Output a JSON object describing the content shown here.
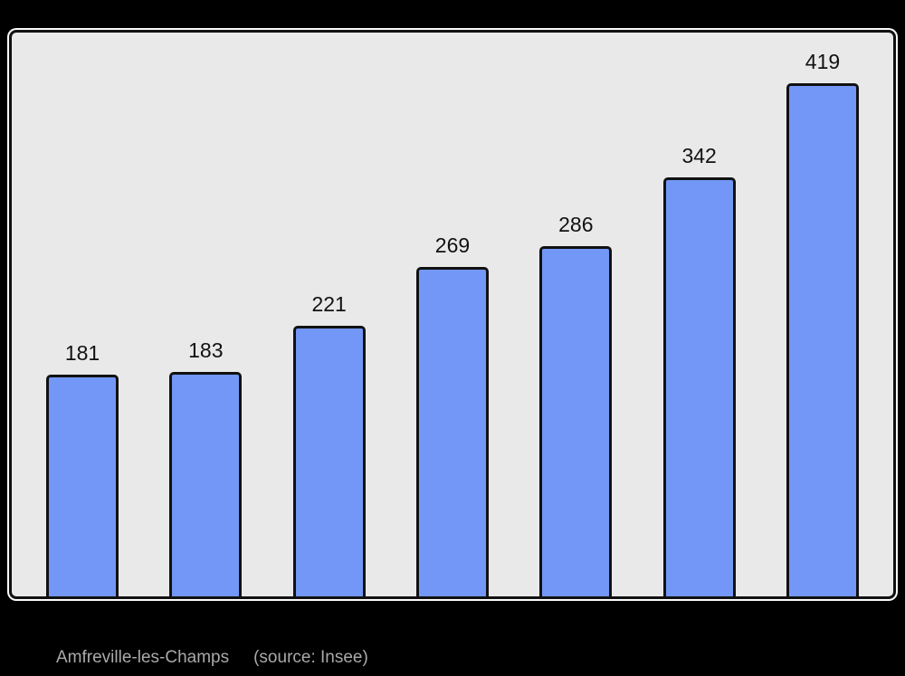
{
  "page": {
    "background": "#000000"
  },
  "chart_data": {
    "type": "bar",
    "values": [
      181,
      183,
      221,
      269,
      286,
      342,
      419
    ],
    "bar_value_labels": [
      "181",
      "183",
      "221",
      "269",
      "286",
      "342",
      "419"
    ],
    "title": "Amfreville-les-Champs",
    "xlabel": "",
    "ylabel": "",
    "ylim": [
      0,
      460
    ],
    "grid": false,
    "legend": false,
    "colors": {
      "bar_fill": "#7297f6",
      "bar_border": "#111111",
      "plot_bg": "#e9e9e9",
      "panel_border": "#111111",
      "panel_outline": "#fbfbfb",
      "value_label": "#111111",
      "caption_text": "#a9a9a9",
      "page_bg": "#000000"
    }
  },
  "caption": {
    "title": "Amfreville-les-Champs",
    "source": "(source: Insee)"
  }
}
